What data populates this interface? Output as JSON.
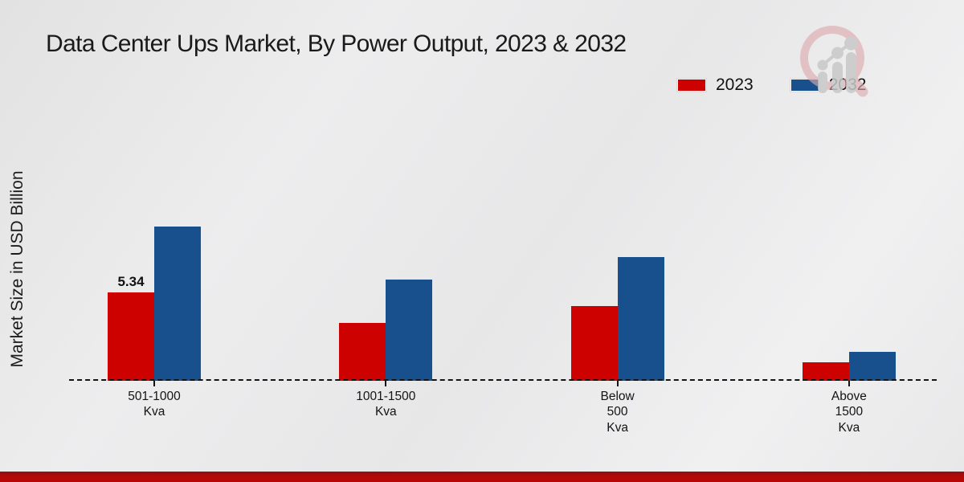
{
  "page": {
    "title": "Data Center Ups Market, By Power Output, 2023 & 2032",
    "ylabel": "Market Size in USD Billion",
    "accent_bottom_bar_color": "#b70808",
    "background_color": "#e9e9ea",
    "logo_name": "market-research-future-watermark"
  },
  "legend": {
    "items": [
      {
        "label": "2023",
        "color": "#cc0100"
      },
      {
        "label": "2032",
        "color": "#17508c"
      }
    ]
  },
  "chart_data": {
    "type": "bar",
    "title": "Data Center Ups Market, By Power Output, 2023 & 2032",
    "xlabel": "",
    "ylabel": "Market Size in USD Billion",
    "categories": [
      "501-1000\nKva",
      "1001-1500\nKva",
      "Below\n500\nKva",
      "Above\n1500\nKva"
    ],
    "series": [
      {
        "name": "2023",
        "color": "#cc0100",
        "values": [
          5.34,
          3.5,
          4.5,
          1.1
        ],
        "data_labels": [
          "5.34",
          "",
          "",
          ""
        ]
      },
      {
        "name": "2032",
        "color": "#17508c",
        "values": [
          9.3,
          6.1,
          7.5,
          1.75
        ],
        "data_labels": [
          "",
          "",
          "",
          ""
        ]
      }
    ],
    "ylim": [
      0,
      10.5
    ],
    "grid": false,
    "axis_baseline_style": "dashed",
    "legend_position": "top-right",
    "value_axis_ticks_visible": false
  }
}
